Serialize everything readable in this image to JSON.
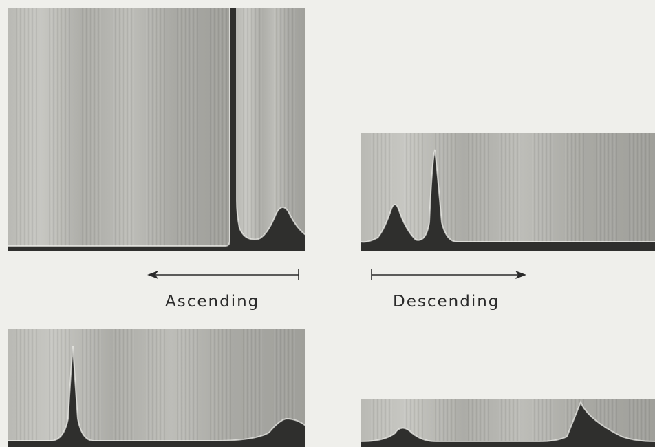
{
  "figure": {
    "labels": {
      "ascending": "Ascending",
      "descending": "Descending"
    },
    "panels": [
      {
        "id": "top-left",
        "description_key": "ascending-top"
      },
      {
        "id": "top-right",
        "description_key": "descending-top"
      },
      {
        "id": "bottom-left",
        "description_key": "ascending-bottom"
      },
      {
        "id": "bottom-right",
        "description_key": "descending-bottom"
      }
    ]
  }
}
